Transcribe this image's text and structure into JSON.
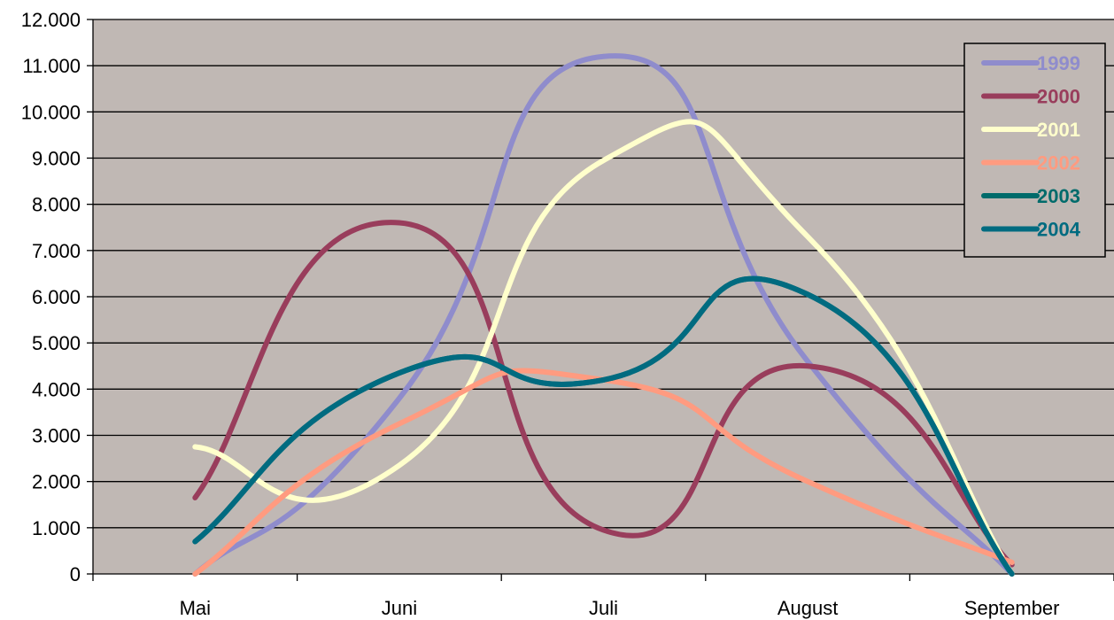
{
  "chart_data": {
    "type": "line",
    "title": "",
    "xlabel": "",
    "ylabel": "",
    "categories": [
      "Mai",
      "Juni",
      "Juli",
      "August",
      "September"
    ],
    "ylim": [
      0,
      12000
    ],
    "yticks": [
      0,
      1000,
      2000,
      3000,
      4000,
      5000,
      6000,
      7000,
      8000,
      9000,
      10000,
      11000,
      12000
    ],
    "ytick_labels": [
      "0",
      "1.000",
      "2.000",
      "3.000",
      "4.000",
      "5.000",
      "6.000",
      "7.000",
      "8.000",
      "9.000",
      "10.000",
      "11.000",
      "12.000"
    ],
    "grid": true,
    "legend_position": "top-right",
    "plot_background": "#C0B8B4",
    "series": [
      {
        "name": "1999",
        "color": "#8F8CCC",
        "values": [
          0,
          3800,
          11200,
          4600,
          0
        ]
      },
      {
        "name": "2000",
        "color": "#993D5C",
        "values": [
          1650,
          7600,
          950,
          4500,
          200
        ]
      },
      {
        "name": "2001",
        "color": "#FFFFCC",
        "values": [
          2750,
          2350,
          8950,
          7300,
          0
        ]
      },
      {
        "name": "2002",
        "color": "#FF9B80",
        "values": [
          0,
          3250,
          4200,
          2000,
          250
        ]
      },
      {
        "name": "2003",
        "color": "#006B6B",
        "values": [
          700,
          4350,
          4200,
          6050,
          0
        ]
      },
      {
        "name": "2004",
        "color": "#006B80",
        "values": [
          700,
          4350,
          4200,
          6050,
          0
        ]
      }
    ]
  }
}
